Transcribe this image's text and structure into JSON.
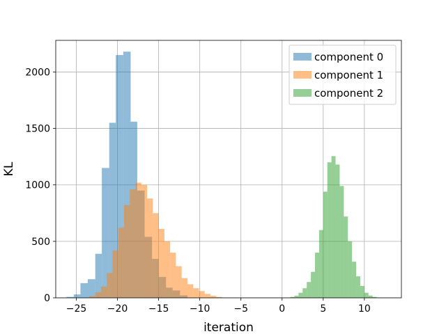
{
  "chart_data": {
    "type": "histogram",
    "title": "",
    "xlabel": "iteration",
    "ylabel": "KL",
    "xlim": [
      -27.5,
      14.5
    ],
    "ylim": [
      0,
      2280
    ],
    "xticks": [
      -25,
      -20,
      -15,
      -10,
      -5,
      0,
      5,
      10
    ],
    "xtick_labels": [
      "−25",
      "−20",
      "−15",
      "−10",
      "−5",
      "0",
      "5",
      "10"
    ],
    "yticks": [
      0,
      500,
      1000,
      1500,
      2000
    ],
    "ytick_labels": [
      "0",
      "500",
      "1000",
      "1500",
      "2000"
    ],
    "grid": true,
    "legend_position": "top-right",
    "series": [
      {
        "name": "component 0",
        "color": "#1f77b4",
        "alpha": 0.5,
        "bins": [
          {
            "x0": -26.2,
            "x1": -25.3,
            "count": 8
          },
          {
            "x0": -25.3,
            "x1": -24.5,
            "count": 30
          },
          {
            "x0": -24.5,
            "x1": -23.6,
            "count": 130
          },
          {
            "x0": -23.6,
            "x1": -22.7,
            "count": 165
          },
          {
            "x0": -22.7,
            "x1": -21.9,
            "count": 390
          },
          {
            "x0": -21.9,
            "x1": -21.0,
            "count": 1150
          },
          {
            "x0": -21.0,
            "x1": -20.2,
            "count": 1550
          },
          {
            "x0": -20.2,
            "x1": -19.3,
            "count": 2150
          },
          {
            "x0": -19.3,
            "x1": -18.4,
            "count": 2180
          },
          {
            "x0": -18.4,
            "x1": -17.6,
            "count": 1560
          },
          {
            "x0": -17.6,
            "x1": -16.7,
            "count": 950
          },
          {
            "x0": -16.7,
            "x1": -15.8,
            "count": 540
          },
          {
            "x0": -15.8,
            "x1": -15.0,
            "count": 345
          },
          {
            "x0": -15.0,
            "x1": -14.1,
            "count": 185
          },
          {
            "x0": -14.1,
            "x1": -13.3,
            "count": 90
          },
          {
            "x0": -13.3,
            "x1": -12.4,
            "count": 65
          },
          {
            "x0": -12.4,
            "x1": -11.5,
            "count": 22
          }
        ]
      },
      {
        "name": "component 1",
        "color": "#ff7f0e",
        "alpha": 0.5,
        "bins": [
          {
            "x0": -23.4,
            "x1": -22.7,
            "count": 15
          },
          {
            "x0": -22.7,
            "x1": -22.0,
            "count": 50
          },
          {
            "x0": -22.0,
            "x1": -21.3,
            "count": 100
          },
          {
            "x0": -21.3,
            "x1": -20.6,
            "count": 220
          },
          {
            "x0": -20.6,
            "x1": -19.9,
            "count": 420
          },
          {
            "x0": -19.9,
            "x1": -19.2,
            "count": 620
          },
          {
            "x0": -19.2,
            "x1": -18.5,
            "count": 820
          },
          {
            "x0": -18.5,
            "x1": -17.8,
            "count": 960
          },
          {
            "x0": -17.8,
            "x1": -17.1,
            "count": 1020
          },
          {
            "x0": -17.1,
            "x1": -16.4,
            "count": 1000
          },
          {
            "x0": -16.4,
            "x1": -15.7,
            "count": 880
          },
          {
            "x0": -15.7,
            "x1": -15.0,
            "count": 750
          },
          {
            "x0": -15.0,
            "x1": -14.3,
            "count": 610
          },
          {
            "x0": -14.3,
            "x1": -13.6,
            "count": 500
          },
          {
            "x0": -13.6,
            "x1": -12.9,
            "count": 400
          },
          {
            "x0": -12.9,
            "x1": -12.2,
            "count": 280
          },
          {
            "x0": -12.2,
            "x1": -11.5,
            "count": 175
          },
          {
            "x0": -11.5,
            "x1": -10.8,
            "count": 120
          },
          {
            "x0": -10.8,
            "x1": -10.1,
            "count": 85
          },
          {
            "x0": -10.1,
            "x1": -9.4,
            "count": 60
          },
          {
            "x0": -9.4,
            "x1": -8.7,
            "count": 35
          },
          {
            "x0": -8.7,
            "x1": -8.0,
            "count": 18
          },
          {
            "x0": -8.0,
            "x1": -7.3,
            "count": 8
          }
        ]
      },
      {
        "name": "component 2",
        "color": "#2ca02c",
        "alpha": 0.5,
        "bins": [
          {
            "x0": 1.0,
            "x1": 1.5,
            "count": 8
          },
          {
            "x0": 1.5,
            "x1": 2.0,
            "count": 18
          },
          {
            "x0": 2.0,
            "x1": 2.5,
            "count": 45
          },
          {
            "x0": 2.5,
            "x1": 3.0,
            "count": 85
          },
          {
            "x0": 3.0,
            "x1": 3.5,
            "count": 140
          },
          {
            "x0": 3.5,
            "x1": 4.0,
            "count": 230
          },
          {
            "x0": 4.0,
            "x1": 4.5,
            "count": 400
          },
          {
            "x0": 4.5,
            "x1": 5.0,
            "count": 600
          },
          {
            "x0": 5.0,
            "x1": 5.5,
            "count": 940
          },
          {
            "x0": 5.5,
            "x1": 6.0,
            "count": 1200
          },
          {
            "x0": 6.0,
            "x1": 6.5,
            "count": 1255
          },
          {
            "x0": 6.5,
            "x1": 7.0,
            "count": 1180
          },
          {
            "x0": 7.0,
            "x1": 7.5,
            "count": 990
          },
          {
            "x0": 7.5,
            "x1": 8.0,
            "count": 720
          },
          {
            "x0": 8.0,
            "x1": 8.5,
            "count": 500
          },
          {
            "x0": 8.5,
            "x1": 9.0,
            "count": 320
          },
          {
            "x0": 9.0,
            "x1": 9.5,
            "count": 190
          },
          {
            "x0": 9.5,
            "x1": 10.0,
            "count": 105
          },
          {
            "x0": 10.0,
            "x1": 10.5,
            "count": 45
          },
          {
            "x0": 10.5,
            "x1": 11.0,
            "count": 20
          },
          {
            "x0": 11.0,
            "x1": 11.5,
            "count": 8
          }
        ]
      }
    ]
  }
}
